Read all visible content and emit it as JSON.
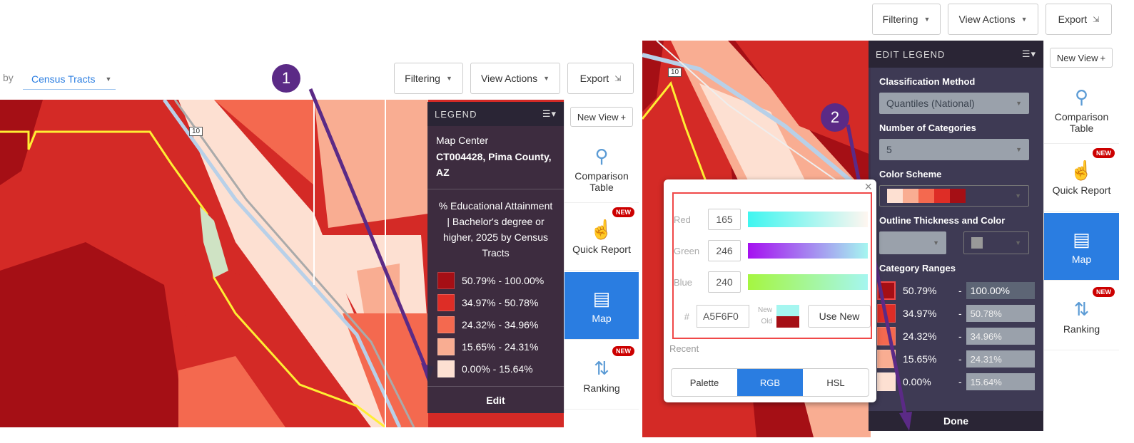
{
  "left": {
    "by_label": "by",
    "geo_select": "Census Tracts",
    "toolbar": {
      "filtering": "Filtering",
      "view_actions": "View Actions",
      "export": "Export"
    },
    "step_badge": "1",
    "highway_label": "10",
    "legend": {
      "title": "LEGEND",
      "map_center_label": "Map Center",
      "map_center_value": "CT004428, Pima County, AZ",
      "variable": "% Educational Attainment | Bachelor's degree or higher, 2025 by Census Tracts",
      "items": [
        {
          "label": "50.79% - 100.00%",
          "color": "#a50f15"
        },
        {
          "label": "34.97% - 50.78%",
          "color": "#de2d26"
        },
        {
          "label": "24.32% - 34.96%",
          "color": "#f4694f"
        },
        {
          "label": "15.65% - 24.31%",
          "color": "#f9ad92"
        },
        {
          "label": "0.00% - 15.64%",
          "color": "#fde0d2"
        }
      ],
      "edit": "Edit"
    },
    "sidebar": {
      "new_view": "New View",
      "items": [
        {
          "label": "Comparison Table",
          "new": false
        },
        {
          "label": "Quick Report",
          "new": true,
          "badge": "NEW"
        },
        {
          "label": "Map",
          "active": true
        },
        {
          "label": "Ranking",
          "new": true,
          "badge": "NEW"
        }
      ]
    }
  },
  "right": {
    "toolbar": {
      "filtering": "Filtering",
      "view_actions": "View Actions",
      "export": "Export"
    },
    "step_badge": "2",
    "highway_label": "10",
    "edit_legend": {
      "title": "EDIT LEGEND",
      "classification_label": "Classification Method",
      "classification_value": "Quantiles (National)",
      "categories_label": "Number of Categories",
      "categories_value": "5",
      "scheme_label": "Color Scheme",
      "outline_label": "Outline Thickness and Color",
      "ranges_label": "Category Ranges",
      "ranges": [
        {
          "min": "50.79%",
          "max": "100.00%",
          "color": "#a50f15"
        },
        {
          "min": "34.97%",
          "max": "50.78%",
          "color": "#de2d26"
        },
        {
          "min": "24.32%",
          "max": "34.96%",
          "color": "#f4694f"
        },
        {
          "min": "15.65%",
          "max": "24.31%",
          "color": "#f9ad92"
        },
        {
          "min": "0.00%",
          "max": "15.64%",
          "color": "#fde0d2"
        }
      ],
      "done": "Done"
    },
    "color_picker": {
      "red_label": "Red",
      "red": "165",
      "green_label": "Green",
      "green": "246",
      "blue_label": "Blue",
      "blue": "240",
      "hash": "#",
      "hex": "A5F6F0",
      "new_label": "New",
      "old_label": "Old",
      "new_color": "#a5f6f0",
      "old_color": "#a50f15",
      "use_new": "Use New",
      "recent": "Recent",
      "tabs": [
        "Palette",
        "RGB",
        "HSL"
      ],
      "active_tab": "RGB",
      "close": "×"
    },
    "sidebar": {
      "new_view": "New View",
      "items": [
        {
          "label": "Comparison Table"
        },
        {
          "label": "Quick Report",
          "badge": "NEW"
        },
        {
          "label": "Map",
          "active": true
        },
        {
          "label": "Ranking",
          "badge": "NEW"
        }
      ]
    }
  }
}
